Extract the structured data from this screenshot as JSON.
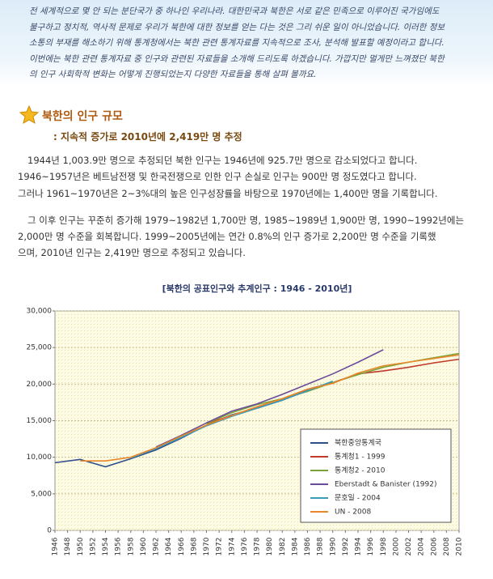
{
  "intro": {
    "lines": [
      "전 세계적으로 몇 안 되는 분단국가 중 하나인 우리나라. 대한민국과 북한은 서로 같은 민족으로 이루어진 국가임에도",
      "불구하고 정치적, 역사적 문제로 우리가 북한에 대한 정보를 얻는 다는 것은 그리 쉬운 일이 아니었습니다. 이러한 정보",
      "소통의 부재를 해소하기 위해 통계청에서는 북한 관련 통계자료를 지속적으로 조사, 분석해 발표할 예정이라고 합니다.",
      "이번에는 북한 관련 통계자료 중 인구와 관련된 자료들을 소개해 드리도록 하겠습니다. 가깝지만 멀게만 느껴졌던 북한",
      "의 인구 사회학적 변화는 어떻게 진행되었는지 다양한 자료들을 통해 살펴 볼까요."
    ]
  },
  "section": {
    "title": "북한의 인구 규모",
    "subtitle": ": 지속적 증가로 2010년에 2,419만 명 추정",
    "paragraphs": [
      [
        "1944년 1,003.9만 명으로 추정되던 북한 인구는 1946년에 925.7만 명으로 감소되었다고 합니다.",
        "1946~1957년은 베트남전쟁 및 한국전쟁으로 인한 인구 손실로 인구는 900만 명 정도였다고 합니다.",
        "그러나 1961~1970년은 2~3%대의 높은 인구성장률을 바탕으로 1970년에는 1,400만 명을 기록합니다."
      ],
      [
        "그 이후 인구는 꾸준히 증가해 1979~1982년 1,700만 명, 1985~1989년 1,900만 명, 1990~1992년에는",
        "2,000만 명 수준을 회복합니다. 1999~2005년에는 연간 0.8%의 인구 증가로 2,200만 명 수준을 기록했",
        "으며, 2010년 인구는 2,419만 명으로 추정되고 있습니다."
      ]
    ]
  },
  "chart_data": {
    "type": "line",
    "title": "[북한의 공표인구와 추계인구 : 1946 - 2010년]",
    "x": [
      1946,
      1950,
      1954,
      1958,
      1962,
      1966,
      1970,
      1974,
      1978,
      1982,
      1986,
      1990,
      1994,
      1998,
      2002,
      2006,
      2010
    ],
    "series": [
      {
        "name": "북한중앙통계국",
        "color": "#2f4f8a",
        "values": [
          9257,
          9700,
          8700,
          9800,
          11000,
          12600,
          14400,
          15800,
          16700,
          17800,
          19200,
          20200,
          null,
          null,
          null,
          null,
          null
        ]
      },
      {
        "name": "통계청1 - 1999",
        "color": "#c0392b",
        "values": [
          null,
          null,
          null,
          null,
          null,
          null,
          14600,
          15700,
          16900,
          18000,
          19300,
          20200,
          21400,
          21800,
          22300,
          22900,
          23400
        ]
      },
      {
        "name": "통계청2 - 2010",
        "color": "#7aa33a",
        "values": [
          null,
          null,
          null,
          null,
          null,
          null,
          14600,
          16100,
          17200,
          18000,
          19000,
          20200,
          21300,
          22300,
          23000,
          23600,
          24190
        ]
      },
      {
        "name": "Eberstadt & Banister (1992)",
        "color": "#6b4c9a",
        "values": [
          null,
          null,
          null,
          null,
          11400,
          13000,
          14700,
          16300,
          17300,
          18600,
          20000,
          21400,
          23000,
          24700,
          null,
          null,
          null
        ]
      },
      {
        "name": "문호일 - 2004",
        "color": "#3a9ab8",
        "values": [
          null,
          null,
          null,
          9900,
          11200,
          12700,
          14300,
          15600,
          16700,
          17800,
          19100,
          20400,
          null,
          null,
          null,
          null,
          null
        ]
      },
      {
        "name": "UN - 2008",
        "color": "#e8882a",
        "values": [
          null,
          9500,
          9500,
          10000,
          11300,
          12900,
          14400,
          15700,
          16900,
          18000,
          19300,
          20100,
          21500,
          22500,
          23000,
          23500,
          24000
        ]
      }
    ],
    "xlim": [
      1946,
      2010
    ],
    "xticks": [
      1946,
      1948,
      1950,
      1952,
      1954,
      1956,
      1958,
      1960,
      1962,
      1964,
      1966,
      1968,
      1970,
      1972,
      1974,
      1976,
      1978,
      1980,
      1982,
      1984,
      1986,
      1988,
      1990,
      1992,
      1994,
      1996,
      1998,
      2000,
      2002,
      2004,
      2006,
      2008,
      2010
    ],
    "ylim": [
      0,
      30000
    ],
    "yticks": [
      0,
      {
        "value": 5000,
        "label": "5,000"
      },
      {
        "value": 10000,
        "label": "10,000"
      },
      {
        "value": 15000,
        "label": "15,000"
      },
      {
        "value": 20000,
        "label": "20,000"
      },
      {
        "value": 25000,
        "label": "25,000"
      },
      {
        "value": 30000,
        "label": "30,000"
      }
    ],
    "grid": true,
    "legend": "lower right"
  }
}
